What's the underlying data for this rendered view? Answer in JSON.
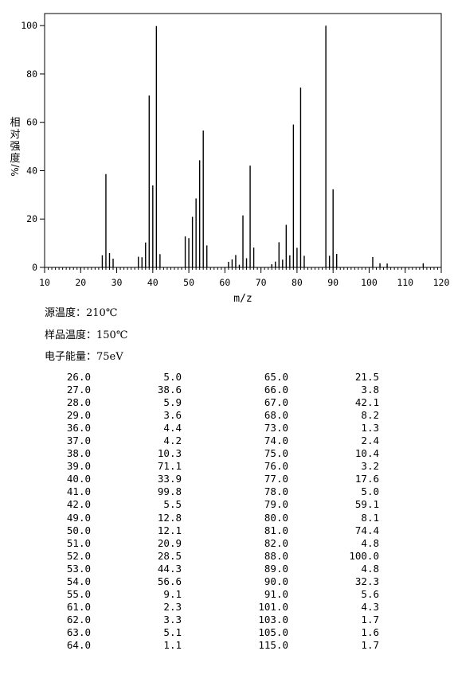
{
  "chart_data": {
    "type": "bar",
    "xlabel": "m/z",
    "ylabel_chars": [
      "相",
      "对",
      "强",
      "度"
    ],
    "ylabel_unit": "%/",
    "xlim": [
      10,
      120
    ],
    "ylim": [
      0,
      105
    ],
    "xticks": [
      "10",
      "20",
      "30",
      "40",
      "50",
      "60",
      "70",
      "80",
      "90",
      "100",
      "110",
      "120"
    ],
    "yticks": [
      "0",
      "20",
      "40",
      "60",
      "80",
      "100"
    ],
    "x": [
      26,
      27,
      28,
      29,
      36,
      37,
      38,
      39,
      40,
      41,
      42,
      49,
      50,
      51,
      52,
      53,
      54,
      55,
      61,
      62,
      63,
      64,
      65,
      66,
      67,
      68,
      73,
      74,
      75,
      76,
      77,
      78,
      79,
      80,
      81,
      82,
      88,
      89,
      90,
      91,
      101,
      103,
      105,
      115
    ],
    "values": [
      5.0,
      38.6,
      5.9,
      3.6,
      4.4,
      4.2,
      10.3,
      71.1,
      33.9,
      99.8,
      5.5,
      12.8,
      12.1,
      20.9,
      28.5,
      44.3,
      56.6,
      9.1,
      2.3,
      3.3,
      5.1,
      1.1,
      21.5,
      3.8,
      42.1,
      8.2,
      1.3,
      2.4,
      10.4,
      3.2,
      17.6,
      5.0,
      59.1,
      8.1,
      74.4,
      4.8,
      100.0,
      4.8,
      32.3,
      5.6,
      4.3,
      1.7,
      1.6,
      1.7
    ],
    "grid": false
  },
  "conditions": {
    "source_temp": "源温度：210℃",
    "sample_temp": "样品温度：150℃",
    "energy": "电子能量：75eV"
  },
  "table": {
    "left": [
      [
        "26.0",
        "5.0"
      ],
      [
        "27.0",
        "38.6"
      ],
      [
        "28.0",
        "5.9"
      ],
      [
        "29.0",
        "3.6"
      ],
      [
        "36.0",
        "4.4"
      ],
      [
        "37.0",
        "4.2"
      ],
      [
        "38.0",
        "10.3"
      ],
      [
        "39.0",
        "71.1"
      ],
      [
        "40.0",
        "33.9"
      ],
      [
        "41.0",
        "99.8"
      ],
      [
        "42.0",
        "5.5"
      ],
      [
        "49.0",
        "12.8"
      ],
      [
        "50.0",
        "12.1"
      ],
      [
        "51.0",
        "20.9"
      ],
      [
        "52.0",
        "28.5"
      ],
      [
        "53.0",
        "44.3"
      ],
      [
        "54.0",
        "56.6"
      ],
      [
        "55.0",
        "9.1"
      ],
      [
        "61.0",
        "2.3"
      ],
      [
        "62.0",
        "3.3"
      ],
      [
        "63.0",
        "5.1"
      ],
      [
        "64.0",
        "1.1"
      ]
    ],
    "right": [
      [
        "65.0",
        "21.5"
      ],
      [
        "66.0",
        "3.8"
      ],
      [
        "67.0",
        "42.1"
      ],
      [
        "68.0",
        "8.2"
      ],
      [
        "73.0",
        "1.3"
      ],
      [
        "74.0",
        "2.4"
      ],
      [
        "75.0",
        "10.4"
      ],
      [
        "76.0",
        "3.2"
      ],
      [
        "77.0",
        "17.6"
      ],
      [
        "78.0",
        "5.0"
      ],
      [
        "79.0",
        "59.1"
      ],
      [
        "80.0",
        "8.1"
      ],
      [
        "81.0",
        "74.4"
      ],
      [
        "82.0",
        "4.8"
      ],
      [
        "88.0",
        "100.0"
      ],
      [
        "89.0",
        "4.8"
      ],
      [
        "90.0",
        "32.3"
      ],
      [
        "91.0",
        "5.6"
      ],
      [
        "101.0",
        "4.3"
      ],
      [
        "103.0",
        "1.7"
      ],
      [
        "105.0",
        "1.6"
      ],
      [
        "115.0",
        "1.7"
      ]
    ]
  }
}
